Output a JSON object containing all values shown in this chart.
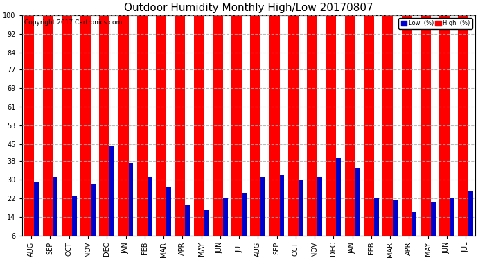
{
  "title": "Outdoor Humidity Monthly High/Low 20170807",
  "copyright": "Copyright 2017 Cartronics.com",
  "months": [
    "AUG",
    "SEP",
    "OCT",
    "NOV",
    "DEC",
    "JAN",
    "FEB",
    "MAR",
    "APR",
    "MAY",
    "JUN",
    "JUL",
    "AUG",
    "SEP",
    "OCT",
    "NOV",
    "DEC",
    "JAN",
    "FEB",
    "MAR",
    "APR",
    "MAY",
    "JUN",
    "JUL"
  ],
  "high_values": [
    100,
    100,
    100,
    100,
    100,
    100,
    100,
    100,
    100,
    100,
    100,
    100,
    100,
    100,
    100,
    100,
    100,
    100,
    100,
    100,
    100,
    100,
    100,
    100
  ],
  "low_values": [
    29,
    31,
    23,
    28,
    44,
    37,
    31,
    27,
    19,
    17,
    22,
    24,
    31,
    32,
    30,
    31,
    39,
    35,
    22,
    21,
    16,
    20,
    22,
    25
  ],
  "high_color": "#ff0000",
  "low_color": "#0000cc",
  "bg_color": "#ffffff",
  "yticks": [
    6,
    14,
    22,
    30,
    38,
    45,
    53,
    61,
    69,
    77,
    84,
    92,
    100
  ],
  "ylim": [
    6,
    100
  ],
  "high_bar_width": 0.55,
  "low_bar_width": 0.25,
  "legend_low_label": "Low  (%)",
  "legend_high_label": "High  (%)",
  "title_fontsize": 11,
  "tick_fontsize": 7,
  "copyright_fontsize": 6.5
}
